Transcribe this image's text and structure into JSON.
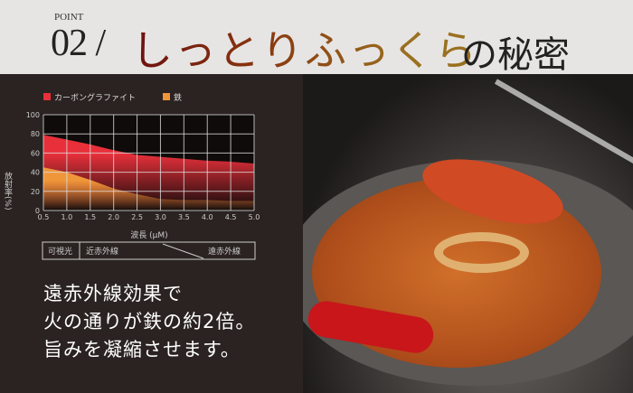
{
  "header": {
    "point_label": "POINT",
    "number": "02 /",
    "title_colored": "しっとりふっくら",
    "title_suffix": "の秘密"
  },
  "chart_data": {
    "type": "area",
    "x": [
      0.5,
      1.0,
      1.5,
      2.0,
      2.5,
      3.0,
      3.5,
      4.0,
      4.5,
      5.0
    ],
    "xticks": [
      "0.5",
      "1.0",
      "1.5",
      "2.0",
      "2.5",
      "3.0",
      "3.5",
      "4.0",
      "4.5",
      "5.0"
    ],
    "yticks": [
      "0",
      "20",
      "40",
      "60",
      "80",
      "100"
    ],
    "xlim": [
      0.5,
      5.0
    ],
    "ylim": [
      0,
      100
    ],
    "xlabel": "波長 (μM)",
    "ylabel": "放射率(%)",
    "grid": true,
    "legend": "top-left",
    "series": [
      {
        "name": "カーボングラファイト",
        "color": "#e8303a",
        "values": [
          79,
          74,
          69,
          63,
          58,
          56,
          54,
          52,
          51,
          49
        ]
      },
      {
        "name": "鉄",
        "color": "#f0963a",
        "values": [
          45,
          40,
          32,
          23,
          17,
          12,
          11,
          11,
          10,
          10
        ]
      }
    ],
    "bands": [
      "可視光",
      "近赤外線",
      "遠赤外線"
    ]
  },
  "copy": {
    "lines": [
      "遠赤外線効果で",
      "火の通りが鉄の約2倍。",
      "旨みを凝縮させます。"
    ]
  }
}
